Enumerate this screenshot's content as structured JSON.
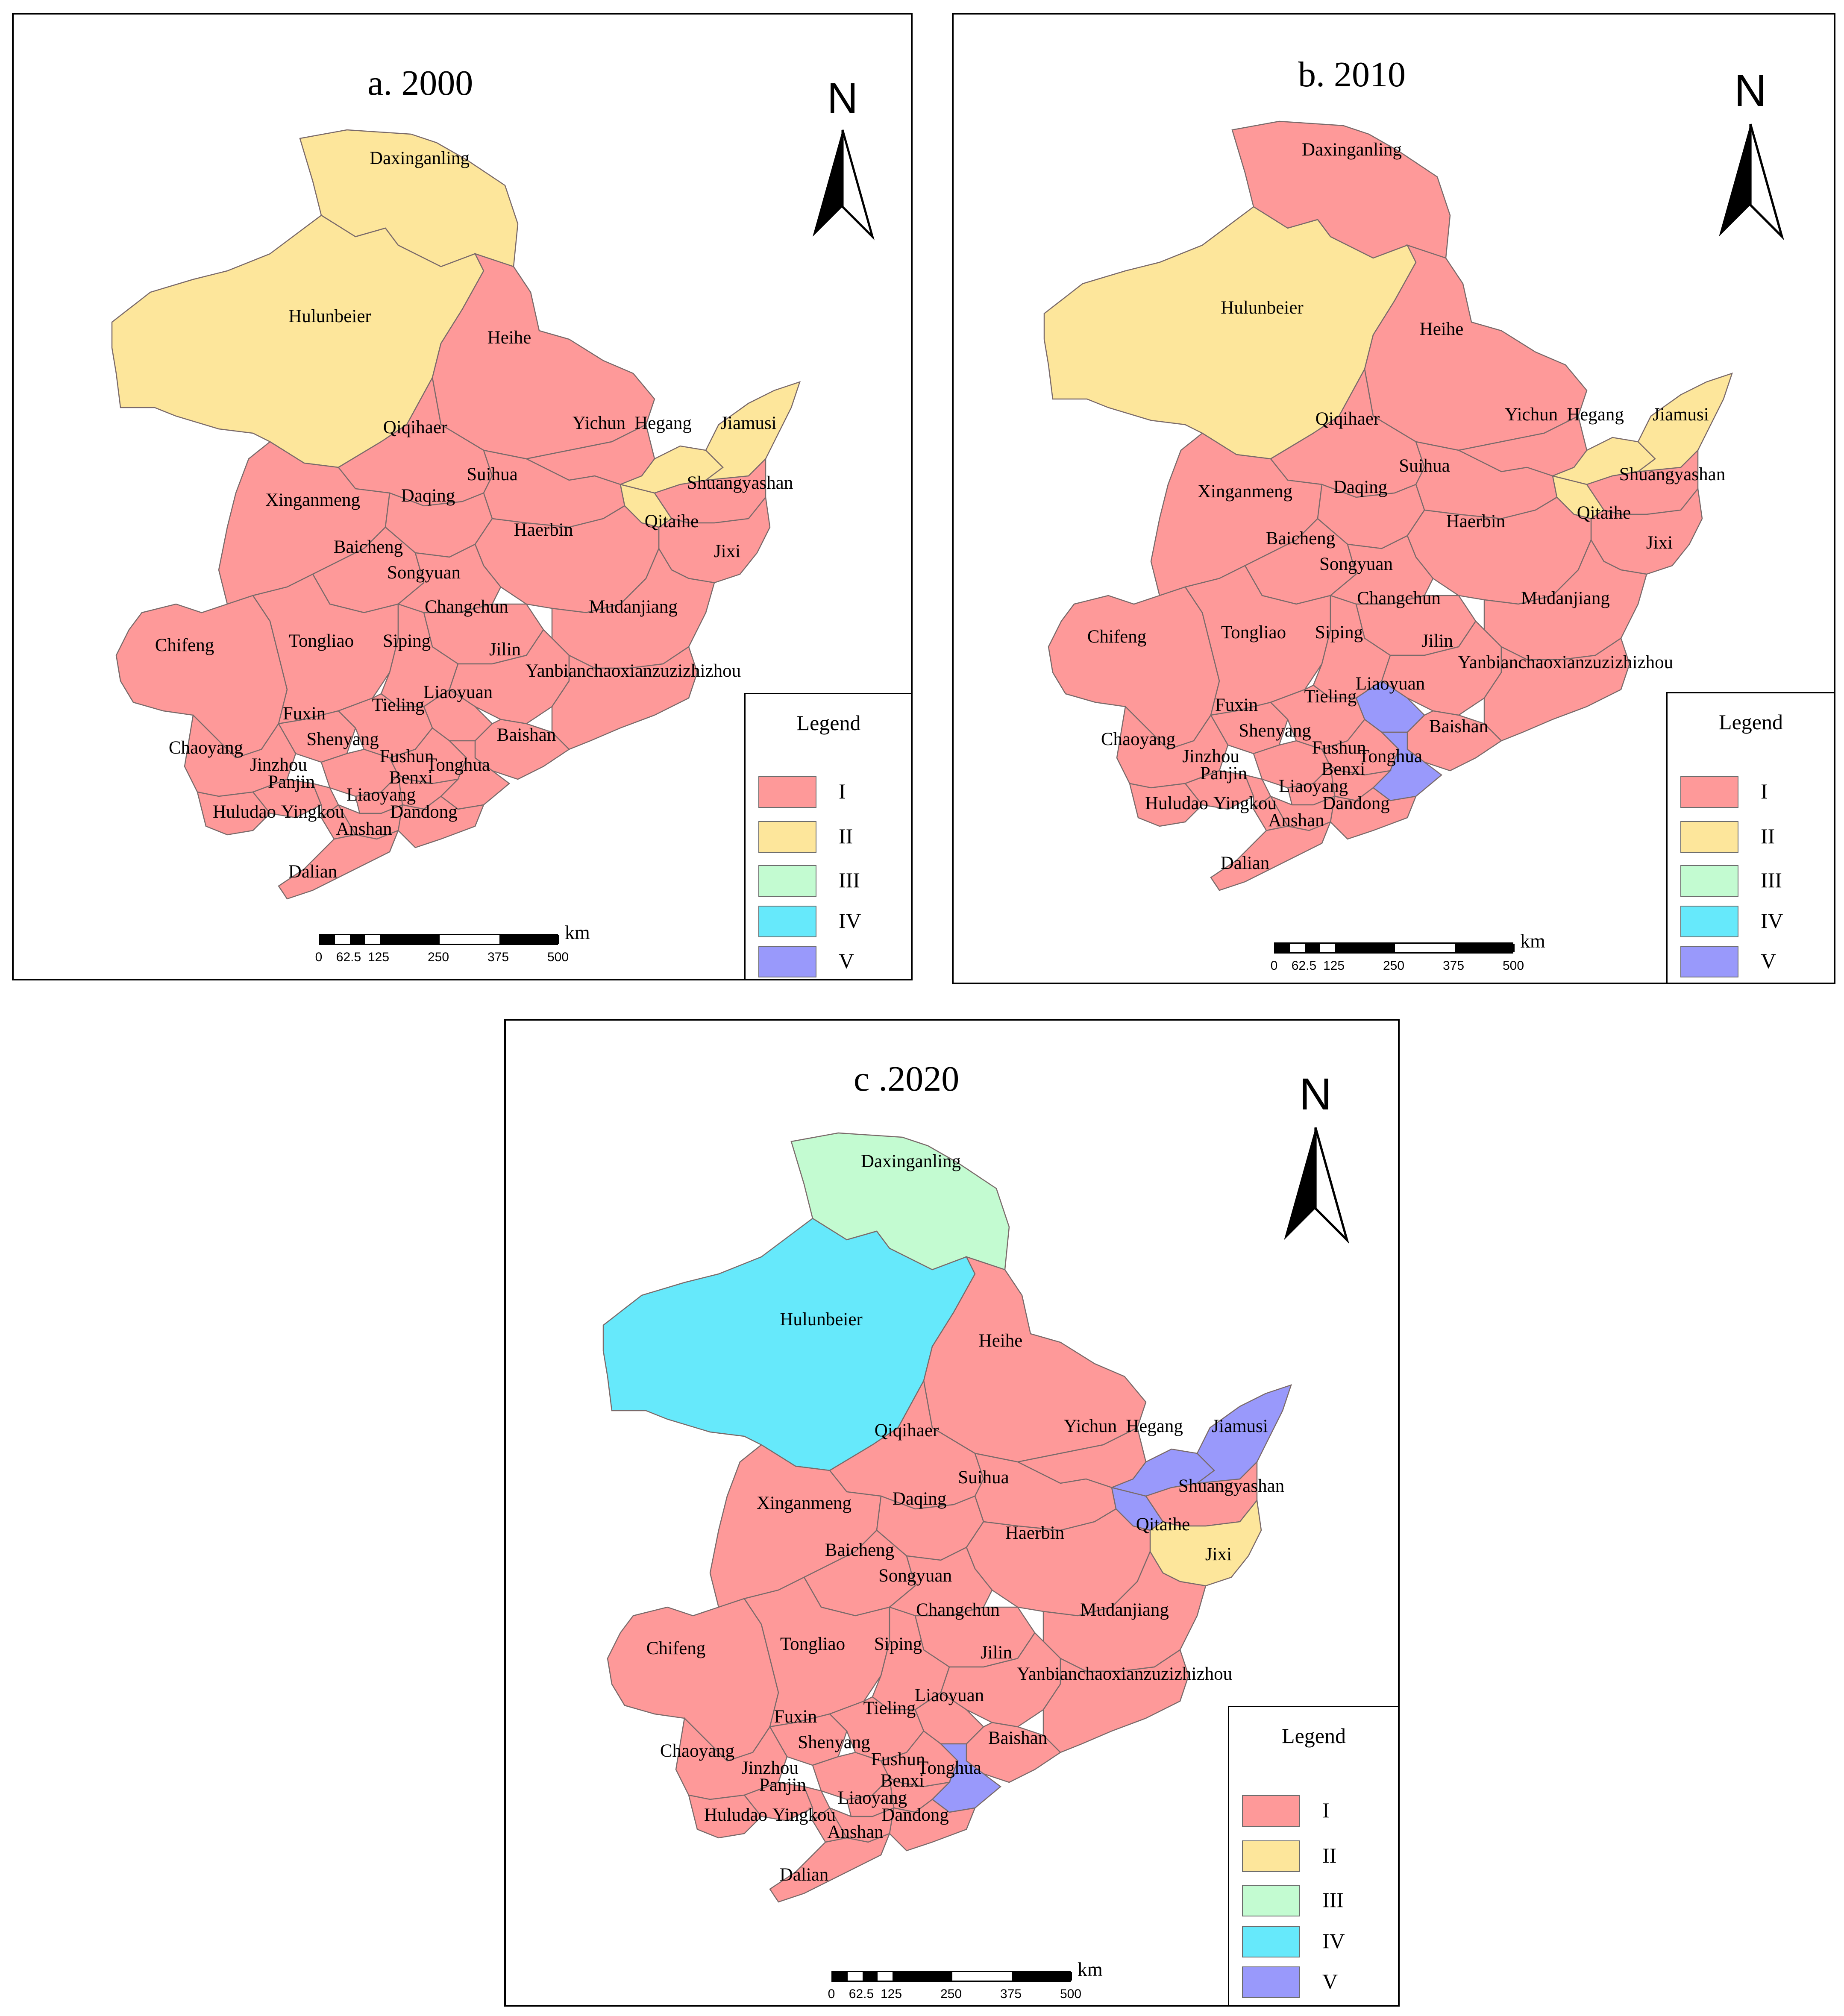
{
  "colors": {
    "I": "#fe9999",
    "II": "#fde69b",
    "III": "#c3fbd1",
    "IV": "#66e9fb",
    "V": "#9999fb"
  },
  "legend": {
    "title": "Legend",
    "classes": [
      "I",
      "II",
      "III",
      "IV",
      "V"
    ]
  },
  "north_label": "N",
  "scale": {
    "unit": "km",
    "ticks": [
      "0",
      "62.5",
      "125",
      "250",
      "375",
      "500"
    ]
  },
  "panels": [
    {
      "title": "a. 2000",
      "classes": {
        "Daxinganling": "II",
        "Hulunbeier": "II",
        "Jiamusi": "II",
        "Hegang": "II",
        "Qitaihe": "II",
        "Heihe": "I",
        "Qiqihaer": "I",
        "Yichun": "I",
        "Shuangyashan": "I",
        "Jixi": "I",
        "Suihua": "I",
        "Xinganmeng": "I",
        "Daqing": "I",
        "Haerbin": "I",
        "Baicheng": "I",
        "Songyuan": "I",
        "Changchun": "I",
        "Mudanjiang": "I",
        "Chifeng": "I",
        "Tongliao": "I",
        "Siping": "I",
        "Jilin": "I",
        "Yanbianchaoxianzuzizhizhou": "I",
        "Liaoyuan": "I",
        "Fuxin": "I",
        "Tieling": "I",
        "Chaoyang": "I",
        "Shenyang": "I",
        "Baishan": "I",
        "Fushun": "I",
        "Tonghua": "I",
        "Jinzhou": "I",
        "Panjin": "I",
        "Benxi": "I",
        "Liaoyang": "I",
        "Huludao": "I",
        "Yingkou": "I",
        "Dandong": "I",
        "Anshan": "I",
        "Dalian": "I"
      }
    },
    {
      "title": "b. 2010",
      "classes": {
        "Daxinganling": "I",
        "Hulunbeier": "II",
        "Jiamusi": "II",
        "Hegang": "II",
        "Qitaihe": "II",
        "Heihe": "I",
        "Qiqihaer": "I",
        "Yichun": "I",
        "Shuangyashan": "I",
        "Jixi": "I",
        "Suihua": "I",
        "Xinganmeng": "I",
        "Daqing": "I",
        "Haerbin": "I",
        "Baicheng": "I",
        "Songyuan": "I",
        "Changchun": "I",
        "Mudanjiang": "I",
        "Chifeng": "I",
        "Tongliao": "I",
        "Siping": "I",
        "Jilin": "I",
        "Yanbianchaoxianzuzizhizhou": "I",
        "Liaoyuan": "V",
        "Fuxin": "I",
        "Tieling": "I",
        "Chaoyang": "I",
        "Shenyang": "I",
        "Baishan": "I",
        "Fushun": "I",
        "Tonghua": "V",
        "Jinzhou": "I",
        "Panjin": "I",
        "Benxi": "I",
        "Liaoyang": "I",
        "Huludao": "I",
        "Yingkou": "I",
        "Dandong": "I",
        "Anshan": "I",
        "Dalian": "I"
      }
    },
    {
      "title": "c .2020",
      "classes": {
        "Daxinganling": "III",
        "Hulunbeier": "IV",
        "Jiamusi": "V",
        "Hegang": "V",
        "Qitaihe": "V",
        "Heihe": "I",
        "Qiqihaer": "I",
        "Yichun": "I",
        "Shuangyashan": "I",
        "Jixi": "II",
        "Suihua": "I",
        "Xinganmeng": "I",
        "Daqing": "I",
        "Haerbin": "I",
        "Baicheng": "I",
        "Songyuan": "I",
        "Changchun": "I",
        "Mudanjiang": "I",
        "Chifeng": "I",
        "Tongliao": "I",
        "Siping": "I",
        "Jilin": "I",
        "Yanbianchaoxianzuzizhizhou": "I",
        "Liaoyuan": "I",
        "Fuxin": "I",
        "Tieling": "I",
        "Chaoyang": "I",
        "Shenyang": "I",
        "Baishan": "I",
        "Fushun": "I",
        "Tonghua": "V",
        "Jinzhou": "I",
        "Panjin": "I",
        "Benxi": "I",
        "Liaoyang": "I",
        "Huludao": "I",
        "Yingkou": "I",
        "Dandong": "I",
        "Anshan": "I",
        "Dalian": "I"
      }
    }
  ]
}
